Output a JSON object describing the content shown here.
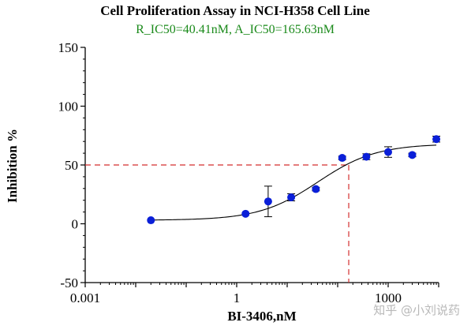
{
  "chart_data": {
    "type": "scatter",
    "title": "Cell Proliferation Assay in NCI-H358  Cell Line",
    "subtitle": "R_IC50=40.41nM, A_IC50=165.63nM",
    "xlabel": "BI-3406,nM",
    "ylabel": "Inhibition %",
    "x_scale": "log",
    "xlim": [
      0.001,
      10000
    ],
    "ylim": [
      -50,
      150
    ],
    "x_ticks": [
      {
        "value": 0.001,
        "label": "0.001"
      },
      {
        "value": 1,
        "label": "1"
      },
      {
        "value": 1000,
        "label": "1000"
      }
    ],
    "y_ticks": [
      {
        "value": -50,
        "label": "-50"
      },
      {
        "value": 0,
        "label": "0"
      },
      {
        "value": 50,
        "label": "50"
      },
      {
        "value": 100,
        "label": "100"
      },
      {
        "value": 150,
        "label": "150"
      }
    ],
    "grid": false,
    "points": [
      {
        "x": 0.02,
        "y": 3,
        "err": 0
      },
      {
        "x": 1.5,
        "y": 8.5,
        "err": 0
      },
      {
        "x": 4.2,
        "y": 19,
        "err": 13
      },
      {
        "x": 12,
        "y": 22.5,
        "err": 3
      },
      {
        "x": 37,
        "y": 29.5,
        "err": 1.5
      },
      {
        "x": 123,
        "y": 56,
        "err": 1.5
      },
      {
        "x": 370,
        "y": 57,
        "err": 2.5
      },
      {
        "x": 1000,
        "y": 61,
        "err": 4.5
      },
      {
        "x": 3000,
        "y": 58.5,
        "err": 1.5
      },
      {
        "x": 9000,
        "y": 72,
        "err": 2.5
      }
    ],
    "fit_curve": {
      "model": "4PL",
      "bottom": 3,
      "top": 68,
      "ic50": 40.41,
      "hill": 0.75
    },
    "reference_line": {
      "y": 50,
      "x": 165.63,
      "color": "#d32f2f",
      "style": "dashed"
    },
    "colors": {
      "points": "#0a1fd8",
      "curve": "#000000",
      "subtitle": "#1a8a1a",
      "axes": "#000000"
    }
  },
  "watermark": "知乎 @小刘说药"
}
